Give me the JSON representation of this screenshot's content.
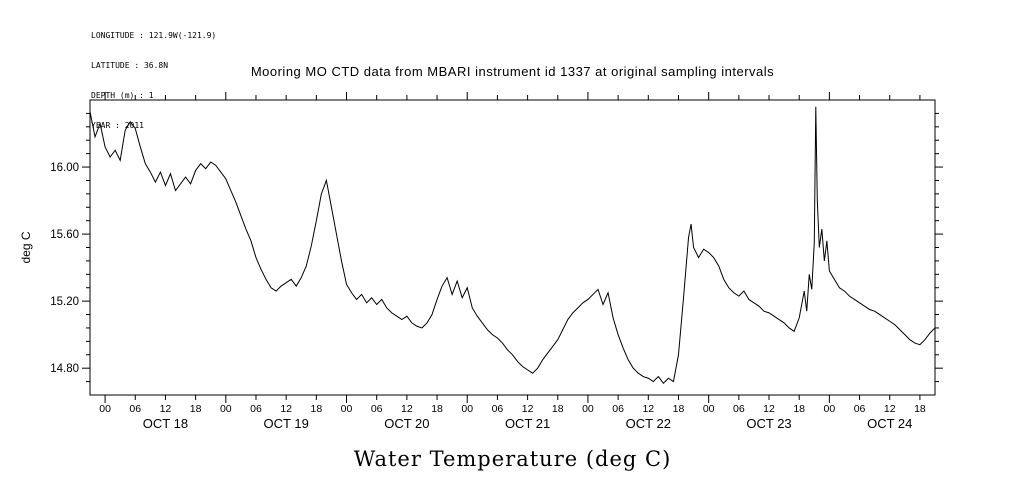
{
  "meta": {
    "lines": [
      "LONGITUDE : 121.9W(-121.9)",
      "LATITUDE : 36.8N",
      "DEPTH (m) : 1",
      "YEAR : 2011"
    ]
  },
  "title": "Mooring MO CTD data from MBARI instrument id 1337 at original sampling intervals",
  "footer_title": "Water Temperature (deg C)",
  "chart_data": {
    "type": "line",
    "title": "Mooring MO CTD data from MBARI instrument id 1337 at original sampling intervals",
    "xlabel": "Water Temperature (deg C)",
    "ylabel": "deg C",
    "line_color": "#000000",
    "grid": false,
    "legend": "none",
    "ylim": [
      14.64,
      16.4
    ],
    "yticks": [
      14.8,
      15.2,
      15.6,
      16.0
    ],
    "ytick_labels": [
      "14.80",
      "15.20",
      "15.60",
      "16.00"
    ],
    "minor_ytick_step": 0.08,
    "xlim_hours": [
      0,
      168
    ],
    "x_time_origin": "OCT 17 21:00 2011",
    "first_hour_tick": 3,
    "hour_tick_interval": 6,
    "hour_tick_labels_cycle": [
      "00",
      "06",
      "12",
      "18"
    ],
    "day_labels": [
      "OCT 18",
      "OCT 19",
      "OCT 20",
      "OCT 21",
      "OCT 22",
      "OCT 23",
      "OCT 24"
    ],
    "day_label_centers_hours": [
      15,
      39,
      63,
      87,
      111,
      135,
      159
    ],
    "series": [
      {
        "name": "water_temperature_deg_C",
        "points": [
          [
            0,
            16.33
          ],
          [
            1,
            16.18
          ],
          [
            2,
            16.26
          ],
          [
            3,
            16.12
          ],
          [
            4,
            16.06
          ],
          [
            5,
            16.1
          ],
          [
            6,
            16.04
          ],
          [
            7,
            16.22
          ],
          [
            8,
            16.27
          ],
          [
            9,
            16.23
          ],
          [
            10,
            16.12
          ],
          [
            11,
            16.02
          ],
          [
            12,
            15.97
          ],
          [
            13,
            15.91
          ],
          [
            14,
            15.97
          ],
          [
            15,
            15.89
          ],
          [
            16,
            15.96
          ],
          [
            17,
            15.86
          ],
          [
            18,
            15.9
          ],
          [
            19,
            15.94
          ],
          [
            20,
            15.9
          ],
          [
            21,
            15.98
          ],
          [
            22,
            16.02
          ],
          [
            23,
            15.99
          ],
          [
            24,
            16.03
          ],
          [
            25,
            16.01
          ],
          [
            26,
            15.97
          ],
          [
            27,
            15.93
          ],
          [
            28,
            15.86
          ],
          [
            29,
            15.79
          ],
          [
            30,
            15.71
          ],
          [
            31,
            15.63
          ],
          [
            32,
            15.56
          ],
          [
            33,
            15.46
          ],
          [
            34,
            15.39
          ],
          [
            35,
            15.33
          ],
          [
            36,
            15.28
          ],
          [
            37,
            15.26
          ],
          [
            38,
            15.29
          ],
          [
            39,
            15.31
          ],
          [
            40,
            15.33
          ],
          [
            41,
            15.29
          ],
          [
            42,
            15.34
          ],
          [
            43,
            15.41
          ],
          [
            44,
            15.53
          ],
          [
            45,
            15.68
          ],
          [
            46,
            15.84
          ],
          [
            47,
            15.92
          ],
          [
            48,
            15.76
          ],
          [
            49,
            15.6
          ],
          [
            50,
            15.44
          ],
          [
            51,
            15.3
          ],
          [
            52,
            15.25
          ],
          [
            53,
            15.21
          ],
          [
            54,
            15.24
          ],
          [
            55,
            15.19
          ],
          [
            56,
            15.22
          ],
          [
            57,
            15.18
          ],
          [
            58,
            15.21
          ],
          [
            59,
            15.16
          ],
          [
            60,
            15.13
          ],
          [
            61,
            15.11
          ],
          [
            62,
            15.09
          ],
          [
            63,
            15.11
          ],
          [
            64,
            15.07
          ],
          [
            65,
            15.05
          ],
          [
            66,
            15.04
          ],
          [
            67,
            15.07
          ],
          [
            68,
            15.12
          ],
          [
            69,
            15.21
          ],
          [
            70,
            15.29
          ],
          [
            71,
            15.34
          ],
          [
            72,
            15.24
          ],
          [
            73,
            15.32
          ],
          [
            74,
            15.22
          ],
          [
            75,
            15.28
          ],
          [
            76,
            15.16
          ],
          [
            77,
            15.11
          ],
          [
            78,
            15.07
          ],
          [
            79,
            15.03
          ],
          [
            80,
            15.0
          ],
          [
            81,
            14.98
          ],
          [
            82,
            14.95
          ],
          [
            83,
            14.91
          ],
          [
            84,
            14.88
          ],
          [
            85,
            14.84
          ],
          [
            86,
            14.81
          ],
          [
            87,
            14.79
          ],
          [
            88,
            14.77
          ],
          [
            89,
            14.8
          ],
          [
            90,
            14.85
          ],
          [
            91,
            14.89
          ],
          [
            92,
            14.93
          ],
          [
            93,
            14.97
          ],
          [
            94,
            15.03
          ],
          [
            95,
            15.09
          ],
          [
            96,
            15.13
          ],
          [
            97,
            15.16
          ],
          [
            98,
            15.19
          ],
          [
            99,
            15.21
          ],
          [
            100,
            15.24
          ],
          [
            101,
            15.27
          ],
          [
            102,
            15.18
          ],
          [
            103,
            15.25
          ],
          [
            104,
            15.1
          ],
          [
            105,
            15.0
          ],
          [
            106,
            14.92
          ],
          [
            107,
            14.85
          ],
          [
            108,
            14.8
          ],
          [
            109,
            14.77
          ],
          [
            110,
            14.75
          ],
          [
            111,
            14.74
          ],
          [
            112,
            14.72
          ],
          [
            113,
            14.75
          ],
          [
            114,
            14.71
          ],
          [
            115,
            14.74
          ],
          [
            116,
            14.72
          ],
          [
            117,
            14.88
          ],
          [
            118,
            15.22
          ],
          [
            119,
            15.58
          ],
          [
            119.5,
            15.66
          ],
          [
            120,
            15.52
          ],
          [
            121,
            15.46
          ],
          [
            122,
            15.51
          ],
          [
            123,
            15.49
          ],
          [
            124,
            15.46
          ],
          [
            125,
            15.41
          ],
          [
            126,
            15.33
          ],
          [
            127,
            15.28
          ],
          [
            128,
            15.25
          ],
          [
            129,
            15.23
          ],
          [
            130,
            15.26
          ],
          [
            131,
            15.21
          ],
          [
            132,
            15.19
          ],
          [
            133,
            15.17
          ],
          [
            134,
            15.14
          ],
          [
            135,
            15.13
          ],
          [
            136,
            15.11
          ],
          [
            137,
            15.09
          ],
          [
            138,
            15.07
          ],
          [
            139,
            15.04
          ],
          [
            140,
            15.02
          ],
          [
            141,
            15.1
          ],
          [
            142,
            15.26
          ],
          [
            142.5,
            15.14
          ],
          [
            143,
            15.36
          ],
          [
            143.5,
            15.27
          ],
          [
            144,
            15.55
          ],
          [
            144.3,
            16.36
          ],
          [
            144.6,
            15.8
          ],
          [
            145,
            15.52
          ],
          [
            145.5,
            15.63
          ],
          [
            146,
            15.44
          ],
          [
            146.5,
            15.56
          ],
          [
            147,
            15.38
          ],
          [
            148,
            15.33
          ],
          [
            149,
            15.28
          ],
          [
            150,
            15.26
          ],
          [
            151,
            15.23
          ],
          [
            152,
            15.21
          ],
          [
            153,
            15.19
          ],
          [
            154,
            15.17
          ],
          [
            155,
            15.15
          ],
          [
            156,
            15.14
          ],
          [
            157,
            15.12
          ],
          [
            158,
            15.1
          ],
          [
            159,
            15.08
          ],
          [
            160,
            15.06
          ],
          [
            161,
            15.03
          ],
          [
            162,
            15.0
          ],
          [
            163,
            14.97
          ],
          [
            164,
            14.95
          ],
          [
            165,
            14.94
          ],
          [
            166,
            14.97
          ],
          [
            167,
            15.01
          ],
          [
            168,
            15.04
          ]
        ]
      }
    ]
  }
}
